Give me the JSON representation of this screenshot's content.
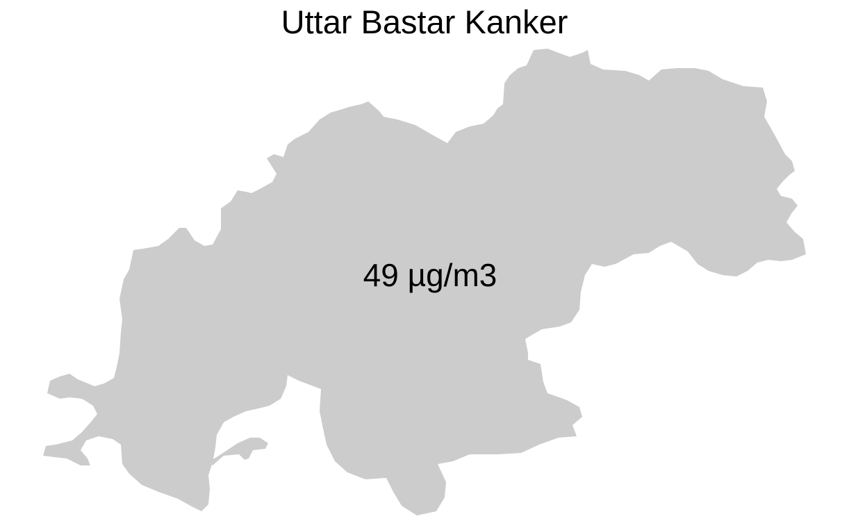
{
  "map": {
    "title": "Uttar Bastar Kanker",
    "value_label": "49 µg/m3",
    "region_fill_color": "#cccccc",
    "background_color": "#ffffff"
  }
}
